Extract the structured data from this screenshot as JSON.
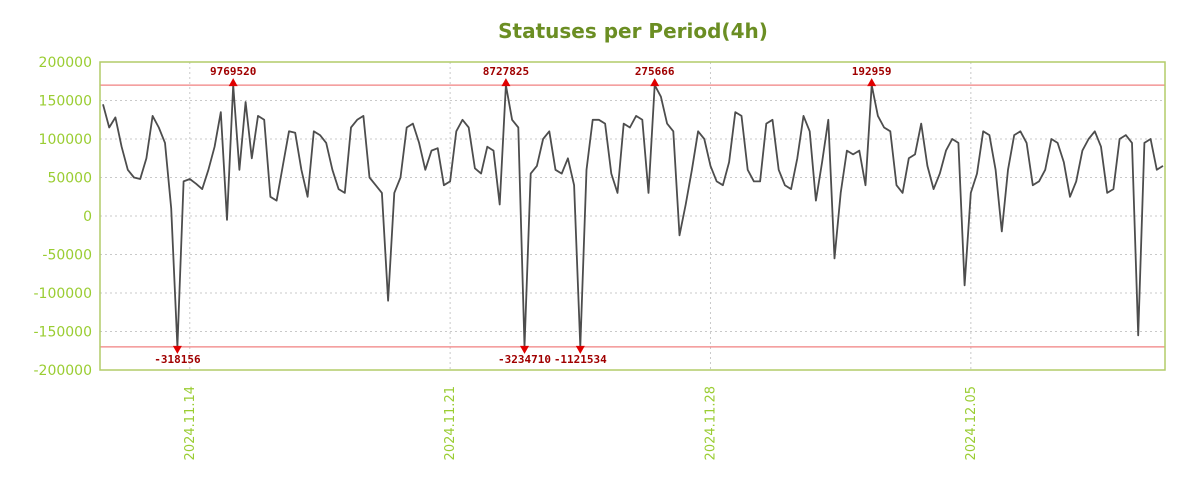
{
  "chart_data": {
    "type": "line",
    "title": "Statuses per Period(4h)",
    "ylim": [
      -200000,
      200000
    ],
    "y_ticks": [
      200000,
      150000,
      100000,
      50000,
      0,
      -50000,
      -100000,
      -150000,
      -200000
    ],
    "x_ticks": [
      {
        "index": 14,
        "label": "2024.11.14"
      },
      {
        "index": 56,
        "label": "2024.11.21"
      },
      {
        "index": 98,
        "label": "2024.11.28"
      },
      {
        "index": 140,
        "label": "2024.12.05"
      }
    ],
    "grid": true,
    "legend": "none",
    "thresholds": {
      "upper": 170000,
      "lower": -170000
    },
    "markers": [
      {
        "index": 12,
        "edge": "lower",
        "label": "-318156"
      },
      {
        "index": 21,
        "edge": "upper",
        "label": "9769520"
      },
      {
        "index": 65,
        "edge": "upper",
        "label": "8727825"
      },
      {
        "index": 68,
        "edge": "lower",
        "label": "-3234710"
      },
      {
        "index": 77,
        "edge": "lower",
        "label": "-1121534"
      },
      {
        "index": 89,
        "edge": "upper",
        "label": "275666"
      },
      {
        "index": 124,
        "edge": "upper",
        "label": "192959"
      }
    ],
    "series": [
      {
        "name": "statuses",
        "values": [
          145000,
          115000,
          128000,
          90000,
          60000,
          50000,
          48000,
          75000,
          130000,
          115000,
          95000,
          10000,
          -170000,
          45000,
          48000,
          42000,
          35000,
          60000,
          90000,
          135000,
          -5000,
          170000,
          60000,
          148000,
          75000,
          130000,
          125000,
          25000,
          20000,
          65000,
          110000,
          108000,
          60000,
          25000,
          110000,
          105000,
          95000,
          60000,
          35000,
          30000,
          115000,
          125000,
          130000,
          50000,
          40000,
          30000,
          -110000,
          30000,
          50000,
          115000,
          120000,
          95000,
          60000,
          85000,
          88000,
          40000,
          45000,
          110000,
          125000,
          115000,
          62000,
          55000,
          90000,
          85000,
          15000,
          170000,
          125000,
          115000,
          -170000,
          55000,
          65000,
          100000,
          110000,
          60000,
          55000,
          75000,
          40000,
          -170000,
          60000,
          125000,
          125000,
          120000,
          55000,
          30000,
          120000,
          115000,
          130000,
          125000,
          30000,
          170000,
          155000,
          120000,
          110000,
          -25000,
          15000,
          60000,
          110000,
          100000,
          65000,
          45000,
          40000,
          70000,
          135000,
          130000,
          60000,
          45000,
          45000,
          120000,
          125000,
          60000,
          40000,
          35000,
          75000,
          130000,
          110000,
          20000,
          70000,
          125000,
          -55000,
          30000,
          85000,
          80000,
          85000,
          40000,
          170000,
          130000,
          115000,
          110000,
          40000,
          30000,
          75000,
          80000,
          120000,
          65000,
          35000,
          55000,
          85000,
          100000,
          95000,
          -90000,
          30000,
          55000,
          110000,
          105000,
          60000,
          -20000,
          60000,
          105000,
          110000,
          95000,
          40000,
          45000,
          60000,
          100000,
          95000,
          70000,
          25000,
          45000,
          85000,
          100000,
          110000,
          90000,
          30000,
          35000,
          100000,
          105000,
          95000,
          -155000,
          95000,
          100000,
          60000,
          65000
        ]
      }
    ]
  },
  "colors": {
    "title": "#6b8e23",
    "axis_text": "#9acd32",
    "date_text": "#9acd32",
    "border": "#b2cc68",
    "grid": "#c9c9c9",
    "series": "#4d4d4d",
    "threshold": "#f08080",
    "marker": "#e00000",
    "marker_text": "#a00000"
  }
}
